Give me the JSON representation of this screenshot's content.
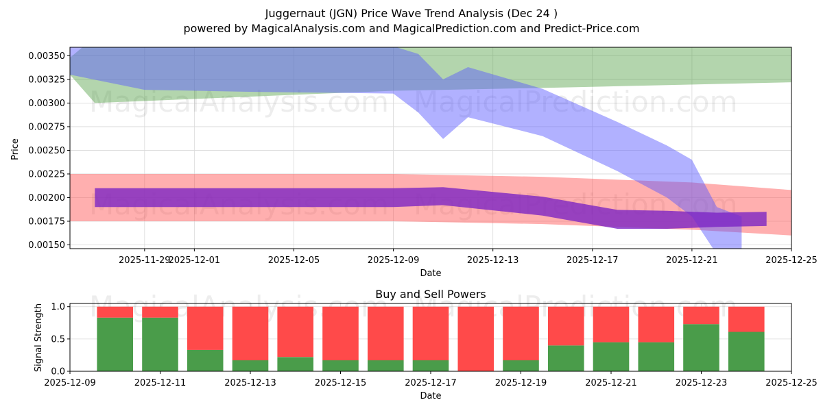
{
  "title_line1": "Juggernaut (JGN) Price Wave Trend Analysis (Dec 24 )",
  "title_line2": "powered by MagicalAnalysis.com and MagicalPrediction.com and Predict-Price.com",
  "watermarks": [
    "MagicalAnalysis.com",
    "MagicalPrediction.com"
  ],
  "chart_data": [
    {
      "type": "area",
      "name": "price-wave-chart",
      "xlabel": "Date",
      "ylabel": "Price",
      "xlim": [
        "2025-11-26",
        "2025-12-25"
      ],
      "ylim": [
        0.00146,
        0.00359
      ],
      "yticks": [
        0.0015,
        0.00175,
        0.002,
        0.00225,
        0.0025,
        0.00275,
        0.003,
        0.00325,
        0.0035
      ],
      "yticklabels": [
        "0.00150",
        "0.00175",
        "0.00200",
        "0.00225",
        "0.00250",
        "0.00275",
        "0.00300",
        "0.00325",
        "0.00350"
      ],
      "xticks": [
        "2025-11-29",
        "2025-12-01",
        "2025-12-05",
        "2025-12-09",
        "2025-12-13",
        "2025-12-17",
        "2025-12-21",
        "2025-12-25"
      ],
      "xticklabels": [
        "2025-11-29",
        "2025-12-01",
        "2025-12-05",
        "2025-12-09",
        "2025-12-13",
        "2025-12-17",
        "2025-12-21",
        "2025-12-25"
      ],
      "grid": true,
      "bands": [
        {
          "name": "green-band",
          "color": "#4a9c3c",
          "opacity": 0.42,
          "x": [
            "2025-11-26",
            "2025-11-27",
            "2025-12-09",
            "2025-12-15",
            "2025-12-25"
          ],
          "upper": [
            0.00348,
            0.0037,
            0.0037,
            0.0037,
            0.0037
          ],
          "lower": [
            0.0033,
            0.003,
            0.00313,
            0.00316,
            0.00322
          ]
        },
        {
          "name": "red-band",
          "color": "#ff4d4d",
          "opacity": 0.45,
          "x": [
            "2025-11-26",
            "2025-12-09",
            "2025-12-15",
            "2025-12-21",
            "2025-12-25"
          ],
          "upper": [
            0.00225,
            0.00225,
            0.00222,
            0.00216,
            0.00208
          ],
          "lower": [
            0.00175,
            0.00175,
            0.00172,
            0.00166,
            0.0016
          ]
        },
        {
          "name": "blue-band",
          "color": "#5a5aff",
          "opacity": 0.47,
          "x": [
            "2025-11-26",
            "2025-11-29",
            "2025-12-03",
            "2025-12-09",
            "2025-12-10",
            "2025-12-11",
            "2025-12-12",
            "2025-12-15",
            "2025-12-18",
            "2025-12-20",
            "2025-12-21",
            "2025-12-22",
            "2025-12-23"
          ],
          "upper": [
            0.0037,
            0.0037,
            0.0037,
            0.0036,
            0.00352,
            0.00325,
            0.00338,
            0.00315,
            0.0028,
            0.00255,
            0.0024,
            0.0019,
            0.0018
          ],
          "lower": [
            0.0033,
            0.00314,
            0.00312,
            0.0031,
            0.0029,
            0.00262,
            0.00285,
            0.00265,
            0.00228,
            0.002,
            0.0018,
            0.0014,
            0.0014
          ]
        },
        {
          "name": "purple-band",
          "color": "#7a22c4",
          "opacity": 0.78,
          "x": [
            "2025-11-27",
            "2025-12-09",
            "2025-12-11",
            "2025-12-15",
            "2025-12-18",
            "2025-12-20",
            "2025-12-22",
            "2025-12-24"
          ],
          "upper": [
            0.0021,
            0.0021,
            0.00211,
            0.00201,
            0.00187,
            0.00186,
            0.00184,
            0.00185
          ],
          "lower": [
            0.0019,
            0.0019,
            0.00192,
            0.00181,
            0.00167,
            0.00167,
            0.00169,
            0.0017
          ]
        }
      ]
    },
    {
      "type": "bar",
      "name": "buy-sell-powers-chart",
      "title": "Buy and Sell Powers",
      "xlabel": "Date",
      "ylabel": "Signal Strength",
      "xlim": [
        "2025-12-09",
        "2025-12-25"
      ],
      "ylim": [
        0,
        1.05
      ],
      "yticks": [
        0,
        0.5,
        1
      ],
      "yticklabels": [
        "0.0",
        "0.5",
        "1.0"
      ],
      "xticks": [
        "2025-12-09",
        "2025-12-11",
        "2025-12-13",
        "2025-12-15",
        "2025-12-17",
        "2025-12-19",
        "2025-12-21",
        "2025-12-23",
        "2025-12-25"
      ],
      "xticklabels": [
        "2025-12-09",
        "2025-12-11",
        "2025-12-13",
        "2025-12-15",
        "2025-12-17",
        "2025-12-19",
        "2025-12-21",
        "2025-12-23",
        "2025-12-25"
      ],
      "grid": true,
      "buy_color": "#4a9c4a",
      "sell_color": "#ff4a4a",
      "categories": [
        "2025-12-10",
        "2025-12-11",
        "2025-12-12",
        "2025-12-13",
        "2025-12-14",
        "2025-12-15",
        "2025-12-16",
        "2025-12-17",
        "2025-12-18",
        "2025-12-19",
        "2025-12-20",
        "2025-12-21",
        "2025-12-22",
        "2025-12-23",
        "2025-12-24"
      ],
      "series": [
        {
          "name": "Buy",
          "values": [
            0.83,
            0.83,
            0.33,
            0.17,
            0.22,
            0.17,
            0.17,
            0.17,
            0.0,
            0.17,
            0.4,
            0.45,
            0.45,
            0.73,
            0.61
          ]
        },
        {
          "name": "Sell",
          "values": [
            0.17,
            0.17,
            0.67,
            0.83,
            0.78,
            0.83,
            0.83,
            0.83,
            1.0,
            0.83,
            0.6,
            0.55,
            0.55,
            0.27,
            0.39
          ]
        }
      ]
    }
  ]
}
